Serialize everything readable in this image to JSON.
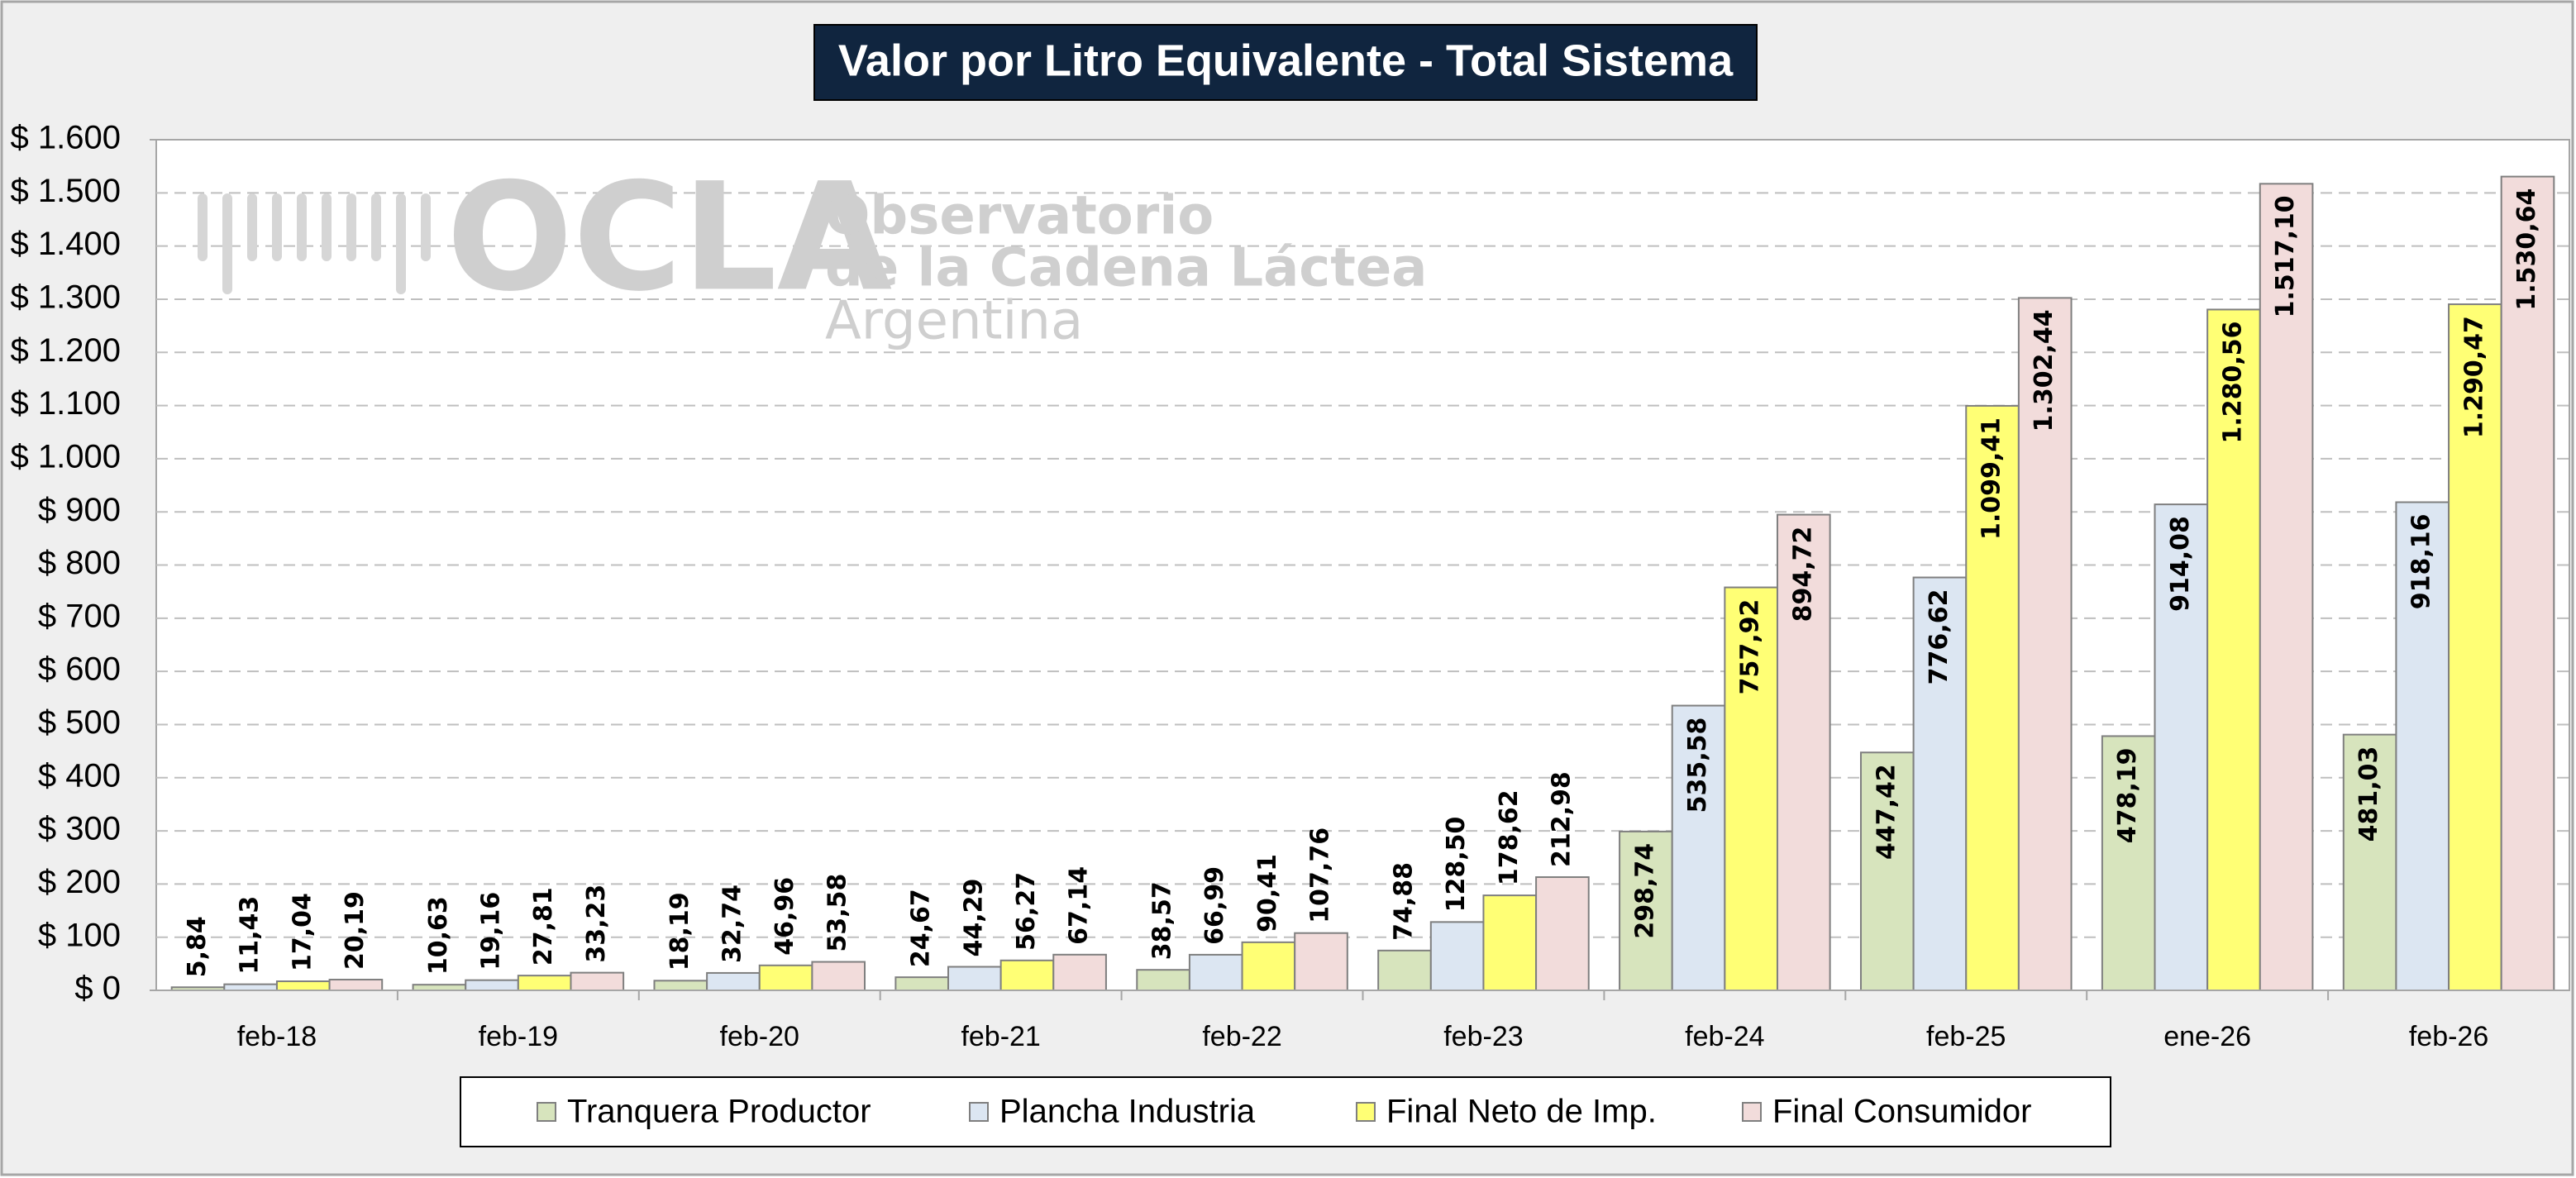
{
  "chart_data": {
    "type": "bar",
    "title": "Valor por Litro Equivalente - Total Sistema",
    "watermark": {
      "logo": "OCLA",
      "lines": [
        "Observatorio",
        "de la Cadena Láctea",
        "Argentina"
      ]
    },
    "categories": [
      "feb-18",
      "feb-19",
      "feb-20",
      "feb-21",
      "feb-22",
      "feb-23",
      "feb-24",
      "feb-25",
      "ene-26",
      "feb-26"
    ],
    "series": [
      {
        "name": "Tranquera Productor",
        "color": "#d7e4bd",
        "values": [
          5.84,
          10.63,
          18.19,
          24.67,
          38.57,
          74.88,
          298.74,
          447.42,
          478.19,
          481.03
        ],
        "value_labels": [
          "5,84",
          "10,63",
          "18,19",
          "24,67",
          "38,57",
          "74,88",
          "298,74",
          "447,42",
          "478,19",
          "481,03"
        ]
      },
      {
        "name": "Plancha Industria",
        "color": "#dce6f2",
        "values": [
          11.43,
          19.16,
          32.74,
          44.29,
          66.99,
          128.5,
          535.58,
          776.62,
          914.08,
          918.16
        ],
        "value_labels": [
          "11,43",
          "19,16",
          "32,74",
          "44,29",
          "66,99",
          "128,50",
          "535,58",
          "776,62",
          "914,08",
          "918,16"
        ]
      },
      {
        "name": "Final Neto de Imp.",
        "color": "#ffff75",
        "values": [
          17.04,
          27.81,
          46.96,
          56.27,
          90.41,
          178.62,
          757.92,
          1099.41,
          1280.56,
          1290.47
        ],
        "value_labels": [
          "17,04",
          "27,81",
          "46,96",
          "56,27",
          "90,41",
          "178,62",
          "757,92",
          "1.099,41",
          "1.280,56",
          "1.290,47"
        ]
      },
      {
        "name": "Final Consumidor",
        "color": "#f2dcdb",
        "values": [
          20.19,
          33.23,
          53.58,
          67.14,
          107.76,
          212.98,
          894.72,
          1302.44,
          1517.1,
          1530.64
        ],
        "value_labels": [
          "20,19",
          "33,23",
          "53,58",
          "67,14",
          "107,76",
          "212,98",
          "894,72",
          "1.302,44",
          "1.517,10",
          "1.530,64"
        ]
      }
    ],
    "ylim": [
      0,
      1600
    ],
    "yticks": [
      {
        "value": 0,
        "label": "$ 0"
      },
      {
        "value": 100,
        "label": "$ 100"
      },
      {
        "value": 200,
        "label": "$ 200"
      },
      {
        "value": 300,
        "label": "$ 300"
      },
      {
        "value": 400,
        "label": "$ 400"
      },
      {
        "value": 500,
        "label": "$ 500"
      },
      {
        "value": 600,
        "label": "$ 600"
      },
      {
        "value": 700,
        "label": "$ 700"
      },
      {
        "value": 800,
        "label": "$ 800"
      },
      {
        "value": 900,
        "label": "$ 900"
      },
      {
        "value": 1000,
        "label": "$ 1.000"
      },
      {
        "value": 1100,
        "label": "$ 1.100"
      },
      {
        "value": 1200,
        "label": "$ 1.200"
      },
      {
        "value": 1300,
        "label": "$ 1.300"
      },
      {
        "value": 1400,
        "label": "$ 1.400"
      },
      {
        "value": 1500,
        "label": "$ 1.500"
      },
      {
        "value": 1600,
        "label": "$ 1.600"
      }
    ],
    "grid": true,
    "legend": "bottom"
  }
}
